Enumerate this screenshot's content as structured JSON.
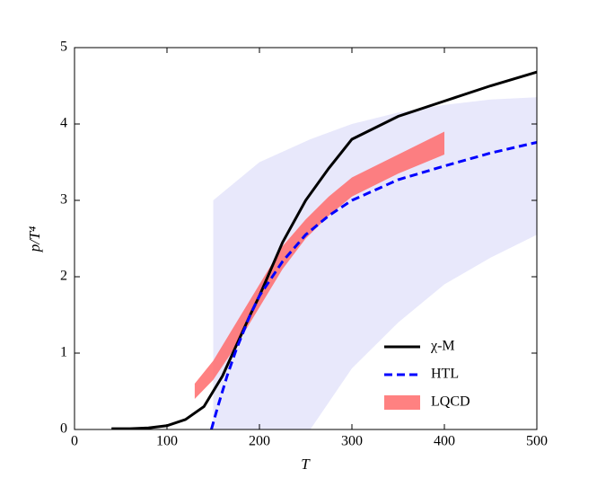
{
  "chart_data": {
    "type": "line",
    "xlabel": "T",
    "ylabel": "p/T⁴",
    "xlim": [
      0,
      500
    ],
    "xticks": [
      0,
      100,
      200,
      300,
      400,
      500
    ],
    "ylim": [
      0,
      5
    ],
    "yticks": [
      0,
      1,
      2,
      3,
      4,
      5
    ],
    "legend": "lower right",
    "bands": [
      {
        "color": "#e8e8fb",
        "x": [
          150,
          200,
          255,
          300,
          350,
          400,
          450,
          500
        ],
        "lower": [
          0,
          0,
          0,
          0.8,
          1.4,
          1.9,
          2.25,
          2.55
        ],
        "upper": [
          3.0,
          3.5,
          3.8,
          4.0,
          4.15,
          4.25,
          4.32,
          4.35
        ]
      },
      {
        "name": "LQCD",
        "color": "#ff6b6b",
        "x": [
          130,
          150,
          175,
          200,
          225,
          250,
          275,
          300,
          350,
          400
        ],
        "lower": [
          0.4,
          0.65,
          1.1,
          1.6,
          2.1,
          2.5,
          2.8,
          3.05,
          3.35,
          3.6
        ],
        "upper": [
          0.6,
          0.9,
          1.4,
          1.9,
          2.4,
          2.75,
          3.05,
          3.3,
          3.6,
          3.9
        ]
      }
    ],
    "series": [
      {
        "name": "χ-M",
        "color": "#000000",
        "dash": false,
        "x": [
          40,
          60,
          80,
          100,
          120,
          140,
          150,
          160,
          175,
          190,
          200,
          225,
          250,
          275,
          300,
          350,
          400,
          450,
          500
        ],
        "values": [
          0.01,
          0.01,
          0.02,
          0.05,
          0.13,
          0.3,
          0.5,
          0.7,
          1.1,
          1.5,
          1.75,
          2.45,
          3.0,
          3.42,
          3.8,
          4.1,
          4.3,
          4.5,
          4.68
        ]
      },
      {
        "name": "HTL",
        "color": "#0000ff",
        "dash": true,
        "x": [
          148,
          155,
          165,
          175,
          190,
          200,
          225,
          250,
          275,
          300,
          350,
          400,
          450,
          500
        ],
        "values": [
          0,
          0.3,
          0.7,
          1.05,
          1.5,
          1.75,
          2.2,
          2.55,
          2.8,
          3.0,
          3.27,
          3.45,
          3.62,
          3.76
        ]
      }
    ]
  }
}
